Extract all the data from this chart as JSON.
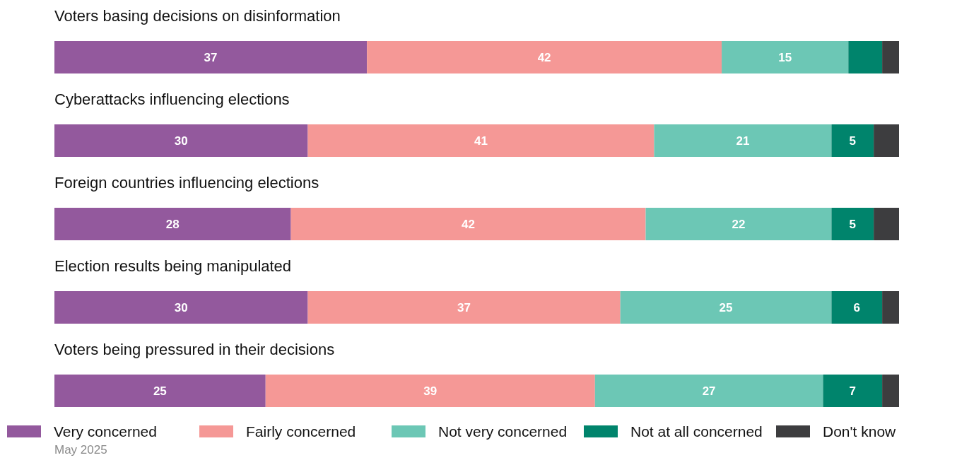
{
  "chart_data": {
    "type": "bar",
    "orientation": "horizontal",
    "stacked": true,
    "legend": "bottom",
    "categories": [
      "Voters basing decisions on disinformation",
      "Cyberattacks influencing elections",
      "Foreign countries influencing elections",
      "Election results being manipulated",
      "Voters being pressured in their decisions"
    ],
    "series": [
      {
        "name": "Very concerned",
        "color": "#93599d",
        "values": [
          37,
          30,
          28,
          30,
          25
        ],
        "value_labels": [
          "37",
          "30",
          "28",
          "30",
          "25"
        ]
      },
      {
        "name": "Fairly concerned",
        "color": "#f59896",
        "values": [
          42,
          41,
          42,
          37,
          39
        ],
        "value_labels": [
          "42",
          "41",
          "42",
          "37",
          "39"
        ]
      },
      {
        "name": "Not very concerned",
        "color": "#6cc7b5",
        "values": [
          15,
          21,
          22,
          25,
          27
        ],
        "value_labels": [
          "15",
          "21",
          "22",
          "25",
          "27"
        ]
      },
      {
        "name": "Not at all concerned",
        "color": "#00846c",
        "values": [
          4,
          5,
          5,
          6,
          7
        ],
        "value_labels": [
          null,
          "5",
          "5",
          "6",
          "7"
        ]
      },
      {
        "name": "Don't know",
        "color": "#3d3d3f",
        "values": [
          2,
          3,
          3,
          2,
          2
        ],
        "value_labels": [
          null,
          null,
          null,
          null,
          null
        ]
      }
    ],
    "annotations": [
      "May 2025"
    ]
  }
}
